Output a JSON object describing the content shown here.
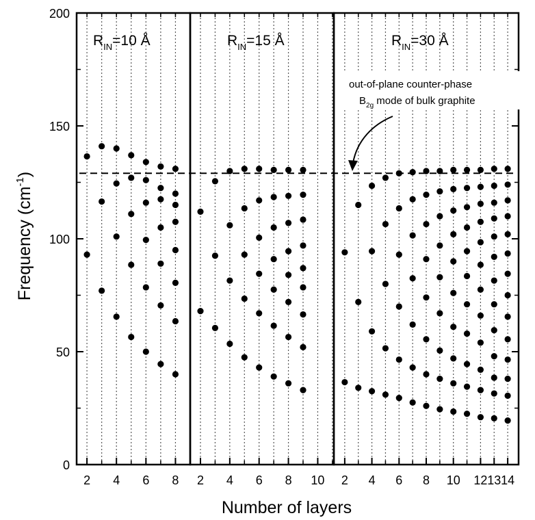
{
  "chart_data": {
    "type": "scatter",
    "ylabel": "Frequency (cm",
    "ylabel_sup": "-1",
    "ylabel_close": ")",
    "xlabel": "Number of layers",
    "ylim": [
      0,
      200
    ],
    "yticks": [
      0,
      50,
      100,
      150,
      200
    ],
    "reference_line_y": 129,
    "annotation_line1": "out-of-plane counter-phase",
    "annotation_line2_a": "B",
    "annotation_line2_sub": "2g",
    "annotation_line2_b": " mode of bulk graphite",
    "panels": [
      {
        "label_r": "R",
        "label_sub": "IN",
        "label_val": "=10 Å",
        "xlim": [
          1.3,
          9.0
        ],
        "xticks": [
          2,
          4,
          6,
          8
        ],
        "x": [
          2,
          2,
          3,
          3,
          3,
          4,
          4,
          4,
          4,
          5,
          5,
          5,
          5,
          5,
          6,
          6,
          6,
          6,
          6,
          6,
          7,
          7,
          7,
          7,
          7,
          7,
          7,
          8,
          8,
          8,
          8,
          8,
          8,
          8,
          8
        ],
        "y": [
          136.5,
          93,
          141,
          116.5,
          77,
          140,
          124.5,
          101,
          65.5,
          137,
          127,
          111,
          88.5,
          56.5,
          134,
          126,
          116,
          99.5,
          78.5,
          50,
          132,
          122.5,
          117.5,
          105,
          89,
          70.5,
          44.5,
          131,
          120,
          115,
          107.5,
          95,
          80.5,
          63.5,
          40
        ]
      },
      {
        "label_r": "R",
        "label_sub": "IN",
        "label_val": "=15 Å",
        "xlim": [
          1.3,
          11.1
        ],
        "xticks": [
          2,
          4,
          6,
          8,
          10
        ],
        "x": [
          2,
          2,
          3,
          3,
          3,
          4,
          4,
          4,
          4,
          5,
          5,
          5,
          5,
          5,
          6,
          6,
          6,
          6,
          6,
          6,
          7,
          7,
          7,
          7,
          7,
          7,
          7,
          8,
          8,
          8,
          8,
          8,
          8,
          8,
          8,
          9,
          9,
          9,
          9,
          9,
          9,
          9,
          9,
          9
        ],
        "y": [
          112,
          68,
          125.5,
          92.5,
          60.5,
          130,
          106,
          81.5,
          53.5,
          131,
          113.5,
          93,
          73.5,
          47.5,
          131,
          117,
          100.5,
          84.5,
          67,
          43,
          130.5,
          118.5,
          105,
          91,
          77.5,
          61.5,
          39,
          130.5,
          119,
          107,
          94.5,
          84,
          72,
          56.5,
          36,
          130.5,
          119.5,
          108.5,
          97,
          87,
          78.5,
          66.5,
          52,
          33
        ]
      },
      {
        "label_r": "R",
        "label_sub": "IN",
        "label_val": "=30 Å",
        "xlim": [
          1.2,
          14.8
        ],
        "xticks": [
          2,
          4,
          6,
          8,
          10,
          12,
          13,
          14
        ],
        "x": [
          2,
          2,
          3,
          3,
          3,
          4,
          4,
          4,
          4,
          5,
          5,
          5,
          5,
          5,
          6,
          6,
          6,
          6,
          6,
          6,
          7,
          7,
          7,
          7,
          7,
          7,
          7,
          8,
          8,
          8,
          8,
          8,
          8,
          8,
          8,
          9,
          9,
          9,
          9,
          9,
          9,
          9,
          9,
          9,
          10,
          10,
          10,
          10,
          10,
          10,
          10,
          10,
          10,
          10,
          11,
          11,
          11,
          11,
          11,
          11,
          11,
          11,
          11,
          11,
          11,
          12,
          12,
          12,
          12,
          12,
          12,
          12,
          12,
          12,
          12,
          12,
          12,
          13,
          13,
          13,
          13,
          13,
          13,
          13,
          13,
          13,
          13,
          13,
          13,
          13,
          14,
          14,
          14,
          14,
          14,
          14,
          14,
          14,
          14,
          14,
          14,
          14,
          14,
          14
        ],
        "y": [
          94,
          36.5,
          115,
          72,
          34,
          123.5,
          94.5,
          59,
          32.5,
          127,
          106.5,
          80,
          51.5,
          31,
          129,
          113.5,
          93,
          70,
          46.5,
          29.5,
          129.5,
          117.5,
          101.5,
          82.5,
          62,
          43,
          27.5,
          130,
          119.5,
          106.5,
          91,
          74,
          55.5,
          40,
          26,
          130,
          121,
          110,
          97,
          83,
          67,
          50.5,
          38,
          24.5,
          130.5,
          122,
          112.5,
          102,
          90,
          76,
          61,
          47,
          36,
          23.5,
          130.5,
          122.5,
          114,
          105,
          94.5,
          83.5,
          71,
          58,
          44.5,
          34.5,
          22.5,
          130.5,
          123,
          115.5,
          107.5,
          98.5,
          88.5,
          77.5,
          66,
          54,
          42,
          33,
          21,
          131,
          123.5,
          116,
          109,
          101,
          92,
          81.5,
          71,
          59.5,
          48,
          38.5,
          31.5,
          20.5,
          131,
          124,
          117,
          110,
          102,
          93.5,
          84.5,
          75,
          65.5,
          55.5,
          46.5,
          38,
          30.5,
          19.5
        ]
      }
    ]
  }
}
